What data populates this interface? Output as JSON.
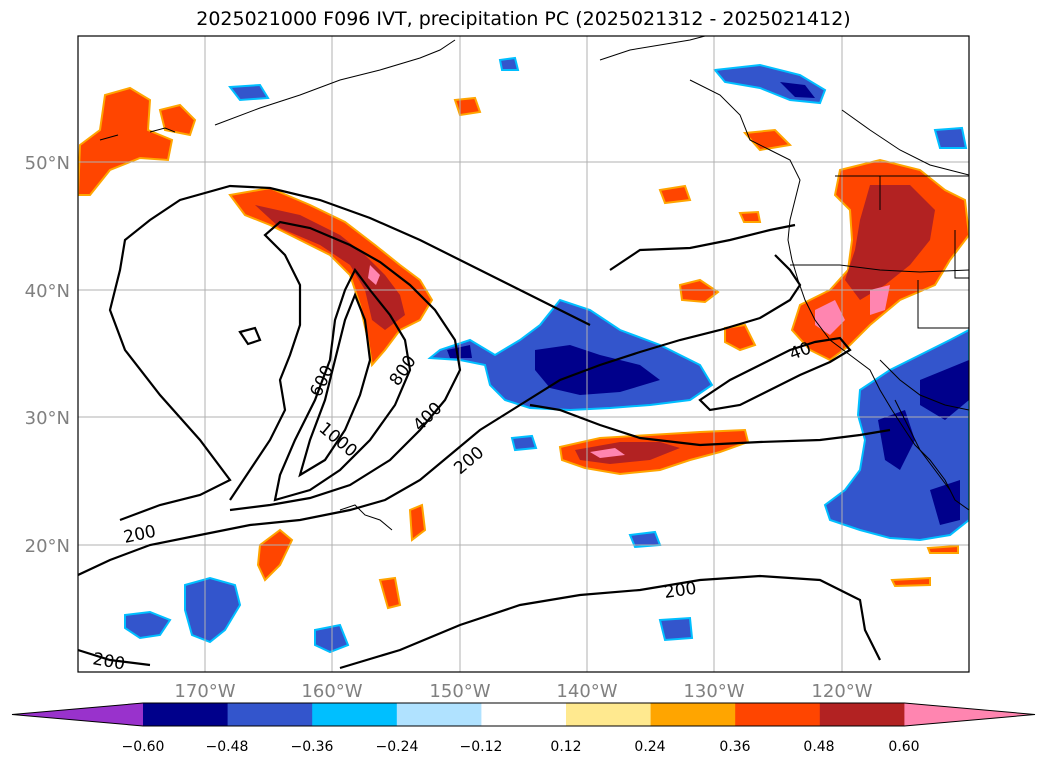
{
  "title": "2025021000 F096 IVT, precipitation PC (2025021312 - 2025021412)",
  "map": {
    "lat_labels": [
      "50°N",
      "40°N",
      "30°N",
      "20°N"
    ],
    "lon_labels": [
      "170°W",
      "160°W",
      "150°W",
      "140°W",
      "130°W",
      "120°W"
    ],
    "ivt_contour_labels": [
      "200",
      "200",
      "200",
      "200",
      "400",
      "400",
      "600",
      "800",
      "1000",
      "40"
    ]
  },
  "colorbar": {
    "ticks": [
      "−0.60",
      "−0.48",
      "−0.36",
      "−0.24",
      "−0.12",
      "0.12",
      "0.24",
      "0.36",
      "0.48",
      "0.60"
    ],
    "colors": [
      "#9932cc",
      "#00008b",
      "#3355cc",
      "#00bfff",
      "#b0e2ff",
      "#ffffff",
      "#ffe98f",
      "#ffa500",
      "#ff4500",
      "#b22222",
      "#ff85b0"
    ]
  },
  "colors": {
    "coast": "#000000",
    "grid": "#b0b0b0",
    "tick_label": "#808080"
  }
}
